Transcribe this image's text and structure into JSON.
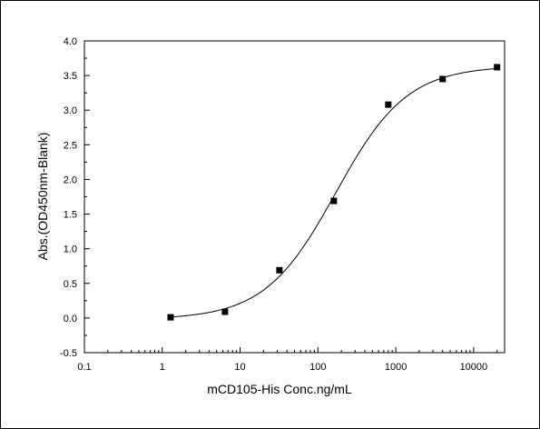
{
  "chart_data": {
    "type": "scatter",
    "title": "",
    "xlabel": "mCD105-His Conc.ng/mL",
    "ylabel": "Abs.(OD450nm-Blank)",
    "x_scale": "log",
    "xlim": [
      0.1,
      25000
    ],
    "ylim": [
      -0.5,
      4.0
    ],
    "x_ticks": [
      0.1,
      1,
      10,
      100,
      1000,
      10000
    ],
    "x_tick_labels": [
      "0.1",
      "1",
      "10",
      "100",
      "1000",
      "10000"
    ],
    "y_ticks": [
      -0.5,
      0.0,
      0.5,
      1.0,
      1.5,
      2.0,
      2.5,
      3.0,
      3.5,
      4.0
    ],
    "y_tick_labels": [
      "-0.5",
      "0.0",
      "0.5",
      "1.0",
      "1.5",
      "2.0",
      "2.5",
      "3.0",
      "3.5",
      "4.0"
    ],
    "grid": false,
    "legend": "none",
    "series": [
      {
        "marker": "square",
        "color": "#000000",
        "x": [
          1.28,
          6.4,
          32,
          160,
          800,
          4000,
          20000
        ],
        "y": [
          0.01,
          0.09,
          0.69,
          1.69,
          3.08,
          3.45,
          3.62
        ]
      }
    ],
    "fit_curve": {
      "type": "4PL",
      "color": "#000000",
      "bottom": -0.02,
      "top": 3.64,
      "ec50": 170,
      "hill": 0.95,
      "x_range": [
        1.28,
        20000
      ]
    }
  }
}
